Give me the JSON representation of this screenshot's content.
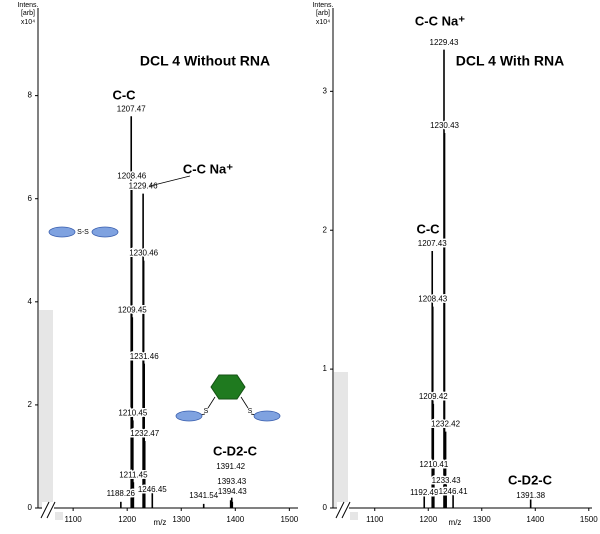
{
  "chart_data": [
    {
      "type": "spectrum",
      "title": "DCL 4 Without RNA",
      "ylabel": [
        "Intens.",
        "[arb]"
      ],
      "yscale_label": "x10⁴",
      "xlabel": "m/z",
      "x": [
        1188.26,
        1207.47,
        1208.46,
        1209.45,
        1210.45,
        1211.45,
        1229.46,
        1230.46,
        1231.46,
        1232.47,
        1246.45,
        1341.54,
        1391.42,
        1393.43,
        1394.43
      ],
      "values": [
        0.12,
        7.6,
        6.3,
        3.7,
        1.7,
        0.5,
        6.1,
        4.8,
        2.8,
        1.3,
        0.3,
        0.08,
        0.15,
        0.2,
        0.12
      ],
      "color": "#000000",
      "xlim": [
        1035,
        1516
      ],
      "xticks": [
        1100,
        1200,
        1300,
        1400,
        1500
      ],
      "ylim": [
        0,
        9.7
      ],
      "yticks": [
        0,
        2,
        4,
        6,
        8
      ],
      "annotations": [
        "C-C",
        "C-C Na⁺",
        "C-D2-C"
      ],
      "structure_labels": [
        "S-S",
        "S",
        "S"
      ]
    },
    {
      "type": "spectrum",
      "title": "DCL 4 With RNA",
      "ylabel": [
        "Intens.",
        "[arb]"
      ],
      "yscale_label": "x10⁴",
      "xlabel": "m/z",
      "x": [
        1192.49,
        1207.43,
        1208.43,
        1209.42,
        1210.41,
        1229.43,
        1230.43,
        1232.42,
        1233.43,
        1246.41,
        1391.38
      ],
      "values": [
        0.1,
        1.85,
        1.45,
        0.75,
        0.3,
        3.3,
        2.7,
        0.55,
        0.2,
        0.15,
        0.08
      ],
      "color": "#000000",
      "xlim": [
        1022,
        1506
      ],
      "xticks": [
        1100,
        1200,
        1300,
        1400,
        1500
      ],
      "ylim": [
        0,
        3.6
      ],
      "yticks": [
        0,
        1,
        2,
        3
      ],
      "annotations": [
        "C-C Na⁺",
        "C-C",
        "C-D2-C"
      ]
    }
  ]
}
